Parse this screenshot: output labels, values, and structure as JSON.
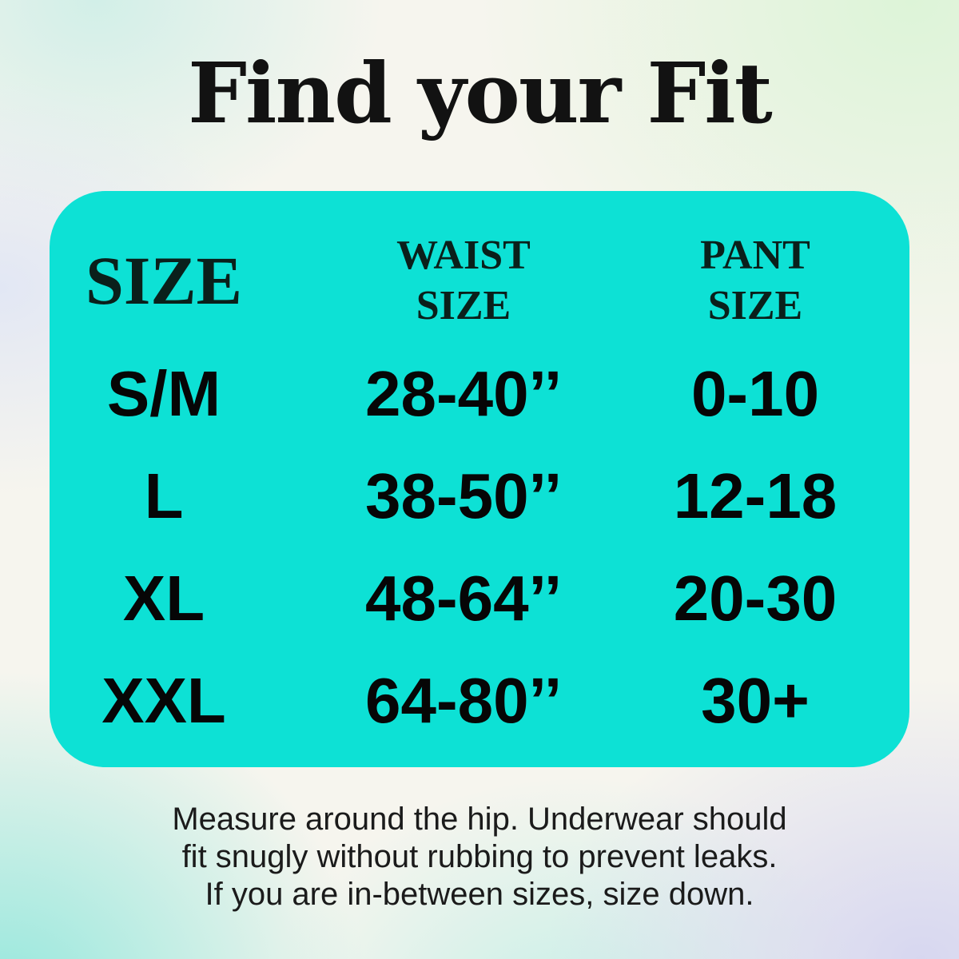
{
  "chart_data": {
    "type": "table",
    "title": "Find your Fit",
    "columns": [
      "SIZE",
      "WAIST SIZE",
      "PANT SIZE"
    ],
    "rows": [
      [
        "S/M",
        "28-40’’",
        "0-10"
      ],
      [
        "L",
        "38-50’’",
        "12-18"
      ],
      [
        "XL",
        "48-64’’",
        "20-30"
      ],
      [
        "XXL",
        "64-80’’",
        "30+"
      ]
    ],
    "note": "Measure around the hip. Underwear should fit snugly without rubbing to prevent leaks. If you are in-between sizes, size down.",
    "layout": "teal rounded card with 3-column size table, serif headers, bold sans values"
  },
  "header": {
    "title": "Find your Fit"
  },
  "table": {
    "col_headers": [
      {
        "line1": "SIZE"
      },
      {
        "line1": "WAIST",
        "line2": "SIZE"
      },
      {
        "line1": "PANT",
        "line2": "SIZE"
      }
    ]
  },
  "footer": {
    "line1": "Measure around the hip. Underwear should",
    "line2": "fit snugly without rubbing to prevent leaks.",
    "line3": "If you are in-between sizes, size down."
  },
  "colors": {
    "card_teal": "#0de1d5",
    "header_text": "#0a201b",
    "value_text": "#060606",
    "note_text": "#1b1b1b"
  }
}
